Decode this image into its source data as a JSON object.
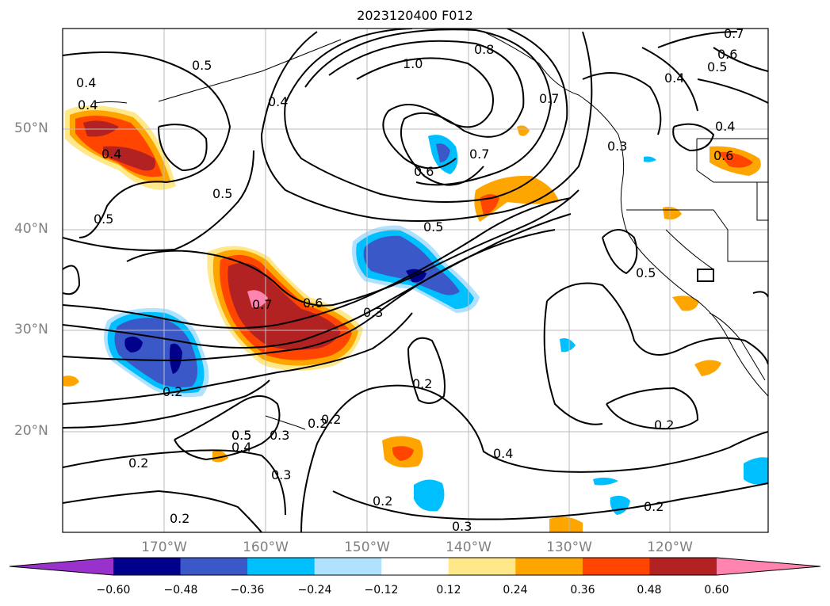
{
  "title": "2023120400 F012",
  "lat_labels": [
    "50°N",
    "40°N",
    "30°N",
    "20°N"
  ],
  "lon_labels": [
    "170°W",
    "160°W",
    "150°W",
    "140°W",
    "130°W",
    "120°W"
  ],
  "colorbar": {
    "colors": [
      "#9932cc",
      "#00008b",
      "#3a58c8",
      "#00bfff",
      "#b0e2ff",
      "#ffffff",
      "#ffe88a",
      "#ffa500",
      "#ff4500",
      "#b22222",
      "#ff85b0"
    ],
    "tick_labels": [
      "−0.60",
      "−0.48",
      "−0.36",
      "−0.24",
      "−0.12",
      "0.12",
      "0.24",
      "0.36",
      "0.48",
      "0.60"
    ]
  },
  "contour_labels": [
    "1.0",
    "0.8",
    "0.7",
    "0.7",
    "0.6",
    "0.5",
    "0.5",
    "0.4",
    "0.4",
    "0.4",
    "0.5",
    "0.4",
    "0.5",
    "0.4",
    "0.4",
    "0.3",
    "0.5",
    "0.5",
    "0.6",
    "0.7",
    "0.7",
    "0.6",
    "0.3",
    "0.6",
    "0.5",
    "0.2",
    "0.2",
    "0.5",
    "0.4",
    "0.3",
    "0.2",
    "0.2",
    "0.4",
    "0.3",
    "0.2",
    "0.2",
    "0.2",
    "0.2",
    "0.3",
    "0.2"
  ]
}
